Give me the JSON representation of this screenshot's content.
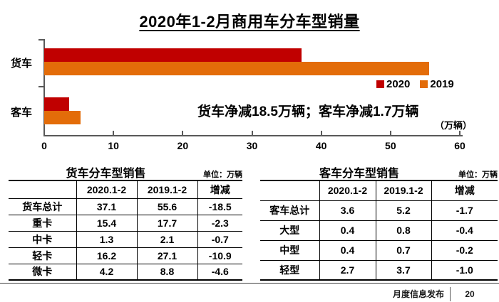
{
  "slide": {
    "title": "2020年1-2月商用车分车型销量",
    "footer_label": "月度信息发布",
    "page_number": "20"
  },
  "chart_data": {
    "type": "bar",
    "orientation": "horizontal",
    "title": "2020年1-2月商用车分车型销量",
    "categories": [
      "货车",
      "客车"
    ],
    "series": [
      {
        "name": "2020",
        "color": "#C00000",
        "values": [
          37.1,
          3.6
        ]
      },
      {
        "name": "2019",
        "color": "#E36C09",
        "values": [
          55.6,
          5.2
        ]
      }
    ],
    "annotation": "货车净减18.5万辆；客车净减1.7万辆",
    "unit_label": "（万辆）",
    "xlabel": "",
    "ylabel": "",
    "xlim": [
      0,
      60
    ],
    "x_ticks": [
      0,
      10,
      20,
      30,
      40,
      50,
      60
    ],
    "grid": false,
    "legend_position": "right-center"
  },
  "truck_table": {
    "title": "货车分车型销售",
    "unit": "单位：万辆",
    "headers": [
      "",
      "2020.1-2",
      "2019.1-2",
      "增减"
    ],
    "rows": [
      [
        "货车总计",
        "37.1",
        "55.6",
        "-18.5"
      ],
      [
        "重卡",
        "15.4",
        "17.7",
        "-2.3"
      ],
      [
        "中卡",
        "1.3",
        "2.1",
        "-0.7"
      ],
      [
        "轻卡",
        "16.2",
        "27.1",
        "-10.9"
      ],
      [
        "微卡",
        "4.2",
        "8.8",
        "-4.6"
      ]
    ]
  },
  "bus_table": {
    "title": "客车分车型销售",
    "unit": "单位：万辆",
    "headers": [
      "",
      "2020.1-2",
      "2019.1-2",
      "增减"
    ],
    "rows": [
      [
        "客车总计",
        "3.6",
        "5.2",
        "-1.7"
      ],
      [
        "大型",
        "0.4",
        "0.8",
        "-0.4"
      ],
      [
        "中型",
        "0.4",
        "0.7",
        "-0.2"
      ],
      [
        "轻型",
        "2.7",
        "3.7",
        "-1.0"
      ]
    ]
  },
  "colors": {
    "series_2020": "#C00000",
    "series_2019": "#E36C09",
    "axis": "#595959",
    "text": "#000000"
  }
}
